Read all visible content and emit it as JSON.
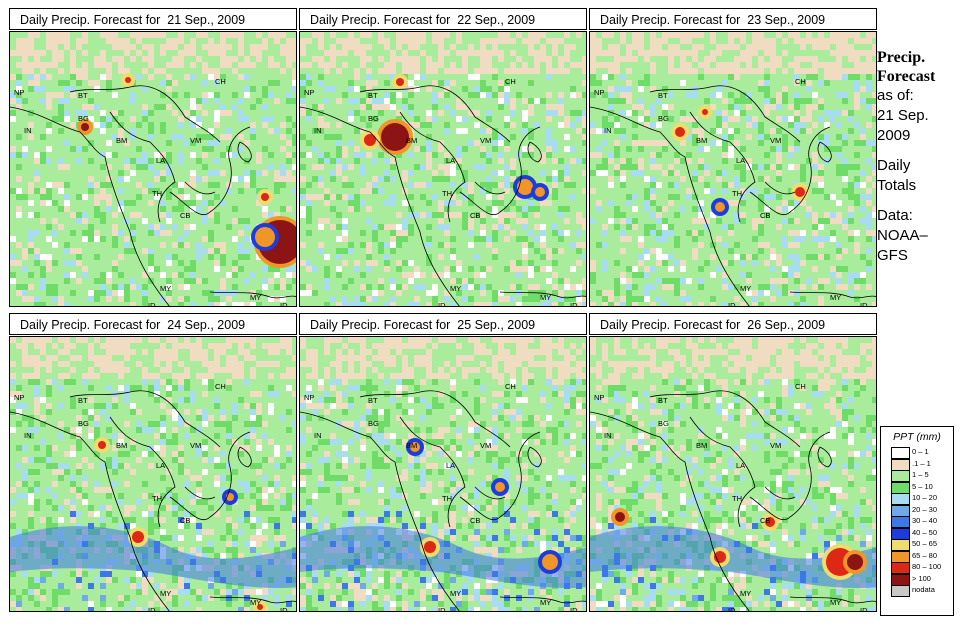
{
  "panels": [
    {
      "title": "Daily Precip. Forecast for  21 Sep., 2009"
    },
    {
      "title": "Daily Precip. Forecast for  22 Sep., 2009"
    },
    {
      "title": "Daily Precip. Forecast for  23 Sep., 2009"
    },
    {
      "title": "Daily Precip. Forecast for  24 Sep., 2009"
    },
    {
      "title": "Daily Precip. Forecast for  25 Sep., 2009"
    },
    {
      "title": "Daily Precip. Forecast for  26 Sep., 2009"
    }
  ],
  "map_labels": [
    "CH",
    "NP",
    "BT",
    "IN",
    "BG",
    "BM",
    "VM",
    "LA",
    "TH",
    "CB",
    "MY",
    "ID"
  ],
  "side_panel": {
    "heading_line1": "Precip.",
    "heading_line2": "Forecast",
    "as_of_label": "as of:",
    "date_line1": "21 Sep.",
    "date_line2": "2009",
    "totals_line1": "Daily",
    "totals_line2": "Totals",
    "data_line1": "Data:",
    "data_line2": "NOAA–",
    "data_line3": "GFS"
  },
  "legend": {
    "title": "PPT (mm)",
    "items": [
      {
        "label": "0 – 1",
        "color": "#ffffff"
      },
      {
        "label": ".1 – 1",
        "color": "#f0dcc0"
      },
      {
        "label": "1 – 5",
        "color": "#a8ec9c"
      },
      {
        "label": "5 – 10",
        "color": "#6edc66"
      },
      {
        "label": "10 – 20",
        "color": "#a8dcf0"
      },
      {
        "label": "20 – 30",
        "color": "#6eaae6"
      },
      {
        "label": "30 – 40",
        "color": "#3c78e6"
      },
      {
        "label": "40 – 50",
        "color": "#1e3cdc"
      },
      {
        "label": "50 – 65",
        "color": "#f0dc6e"
      },
      {
        "label": "65 – 80",
        "color": "#f09628"
      },
      {
        "label": "80 – 100",
        "color": "#dc2814"
      },
      {
        "label": "> 100",
        "color": "#8c1414"
      },
      {
        "label": "nodata",
        "color": "#c8c8c8"
      }
    ]
  }
}
